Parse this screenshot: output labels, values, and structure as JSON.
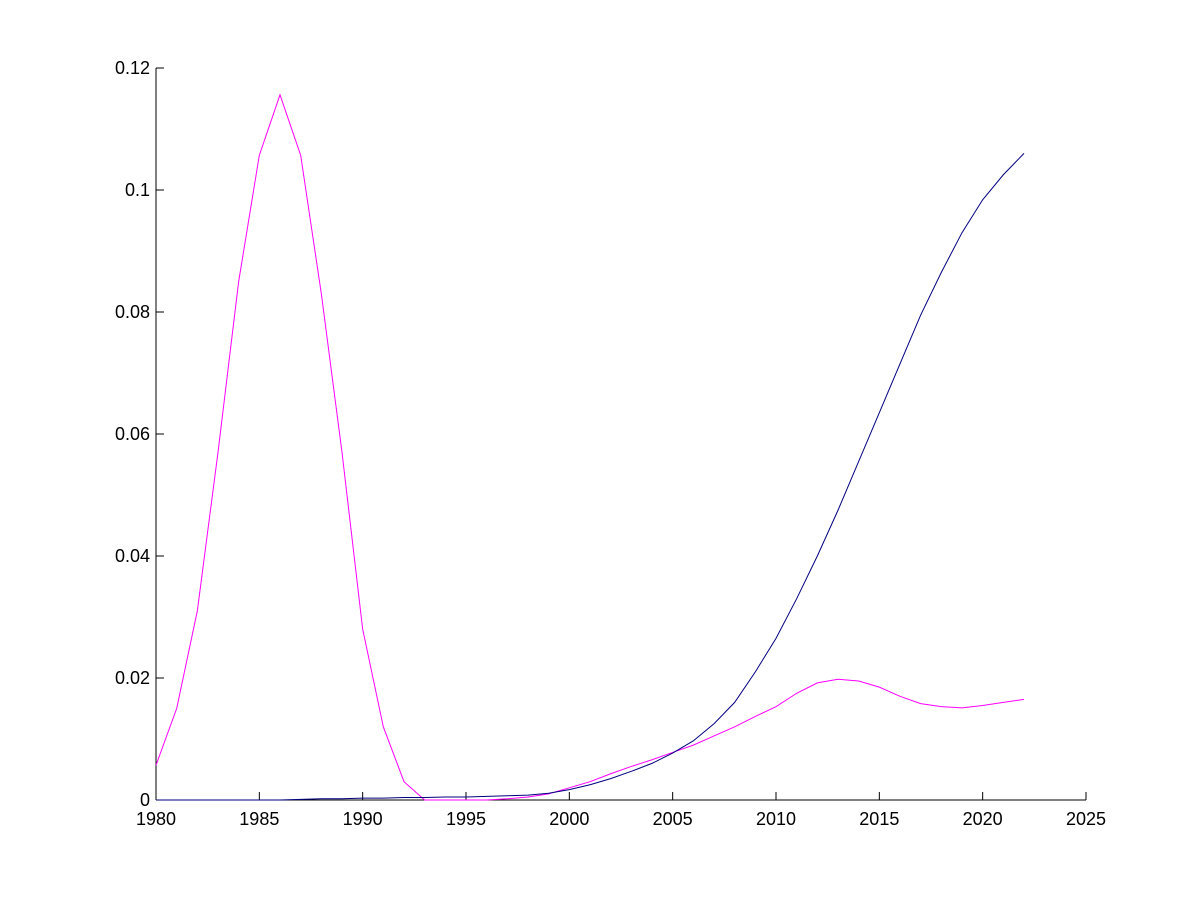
{
  "chart_data": {
    "type": "line",
    "x": [
      1980,
      1981,
      1982,
      1983,
      1984,
      1985,
      1986,
      1987,
      1988,
      1989,
      1990,
      1991,
      1992,
      1993,
      1994,
      1995,
      1996,
      1997,
      1998,
      1999,
      2000,
      2001,
      2002,
      2003,
      2004,
      2005,
      2006,
      2007,
      2008,
      2009,
      2010,
      2011,
      2012,
      2013,
      2014,
      2015,
      2016,
      2017,
      2018,
      2019,
      2020,
      2021,
      2022
    ],
    "series": [
      {
        "color": "#ff00ff",
        "values": [
          0.0057,
          0.015,
          0.031,
          0.057,
          0.085,
          0.1057,
          0.1156,
          0.1057,
          0.083,
          0.057,
          0.028,
          0.012,
          0.003,
          0,
          0,
          0,
          0,
          0.0002,
          0.0005,
          0.001,
          0.002,
          0.003,
          0.0043,
          0.0055,
          0.0066,
          0.0078,
          0.009,
          0.0105,
          0.012,
          0.0137,
          0.0153,
          0.0175,
          0.0192,
          0.0198,
          0.0195,
          0.0185,
          0.017,
          0.0158,
          0.0153,
          0.0151,
          0.0155,
          0.016,
          0.0165
        ]
      },
      {
        "color": "#000080",
        "values": [
          0,
          0,
          0,
          0,
          0,
          0,
          0,
          0.0001,
          0.0002,
          0.0002,
          0.0003,
          0.0003,
          0.0004,
          0.0004,
          0.0005,
          0.0005,
          0.0006,
          0.0007,
          0.0008,
          0.0011,
          0.0017,
          0.0025,
          0.0035,
          0.0047,
          0.006,
          0.0077,
          0.0097,
          0.0125,
          0.016,
          0.021,
          0.0265,
          0.033,
          0.04,
          0.0475,
          0.0555,
          0.0635,
          0.0715,
          0.0795,
          0.0865,
          0.093,
          0.0984,
          0.1025,
          0.106
        ]
      }
    ],
    "xlim": [
      1980,
      2025
    ],
    "xticks": [
      1980,
      1985,
      1990,
      1995,
      2000,
      2005,
      2010,
      2015,
      2020,
      2025
    ],
    "ylim": [
      0,
      0.12
    ],
    "yticks": [
      0,
      0.02,
      0.04,
      0.06,
      0.08,
      0.1,
      0.12
    ],
    "grid": false
  }
}
